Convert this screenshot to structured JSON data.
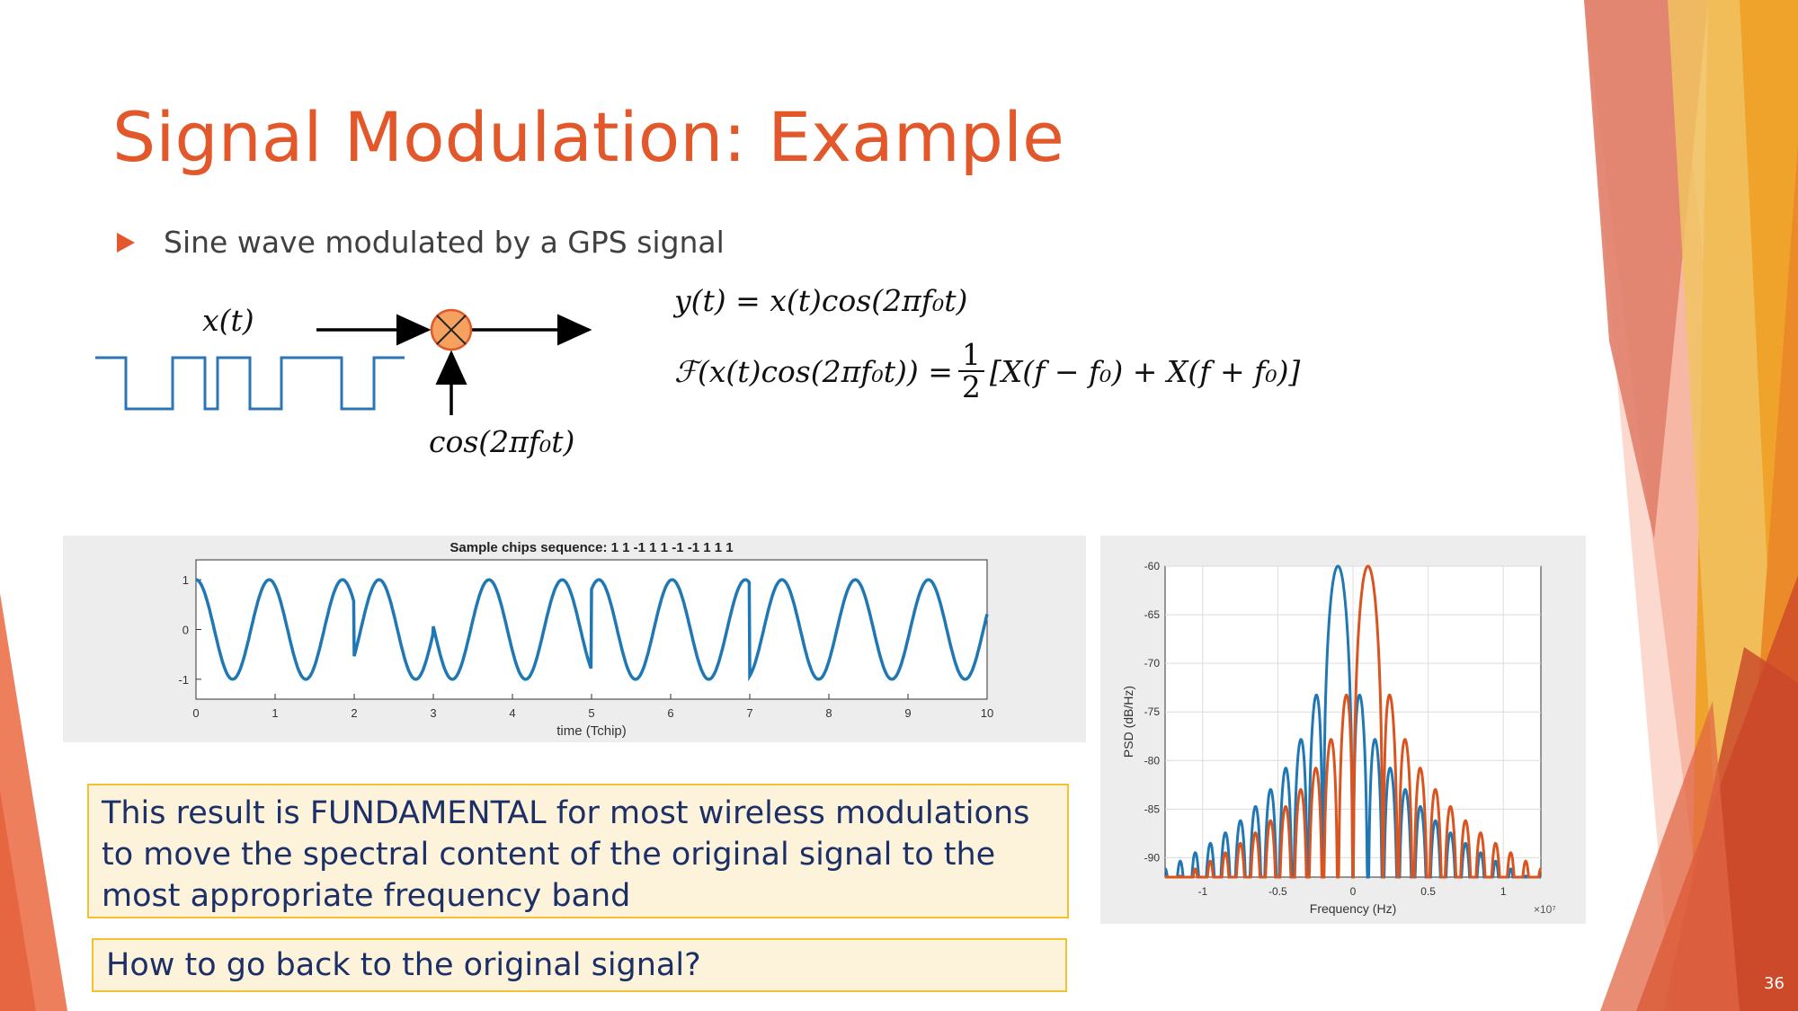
{
  "slide": {
    "title": "Signal Modulation: Example",
    "bullet": "Sine wave modulated by a GPS signal",
    "page_number": "36"
  },
  "block_diagram": {
    "input_label": "x(t)",
    "carrier_label": "cos(2πf₀t)",
    "mixer_icon": "multiply-circle-icon"
  },
  "equations": {
    "eq1": "y(t) = x(t)cos(2πf₀t)",
    "eq2_lhs": "ℱ(x(t)cos(2πf₀t)) =",
    "eq2_frac_num": "1",
    "eq2_frac_den": "2",
    "eq2_rhs": "[X(f − f₀) + X(f + f₀)]"
  },
  "callouts": {
    "fundamental": "This result is FUNDAMENTAL for most wireless modulations to move the spectral content of the original signal to the most appropriate frequency band",
    "question": "How to go back to the original signal?"
  },
  "colors": {
    "title": "#e2582a",
    "callout_bg": "#fdf3db",
    "callout_border": "#f2c233",
    "callout_text": "#1c2f66",
    "line_blue": "#1f77b4",
    "line_orange": "#d9541e"
  },
  "chart_data": [
    {
      "type": "line",
      "title": "Sample chips sequence: 1  1 -1  1  1 -1 -1  1  1  1",
      "chips": [
        1,
        1,
        -1,
        1,
        1,
        -1,
        -1,
        1,
        1,
        1
      ],
      "xlabel": "time (Tchip)",
      "ylabel": "",
      "xlim": [
        0,
        10
      ],
      "ylim": [
        -1.4,
        1.4
      ],
      "xticks": [
        "0",
        "1",
        "2",
        "3",
        "4",
        "5",
        "6",
        "7",
        "8",
        "9",
        "10"
      ],
      "yticks": [
        "1",
        "0",
        "-1"
      ],
      "grid": false,
      "series": [
        {
          "color": "#1f77b4"
        }
      ]
    },
    {
      "type": "line",
      "title": "",
      "xlabel": "Frequency (Hz)",
      "ylabel": "PSD (dB/Hz)",
      "x_exponent": "×10⁷",
      "xlim": [
        -1.25,
        1.25
      ],
      "ylim": [
        -92,
        -60
      ],
      "xticks": [
        "-1",
        "-0.5",
        "0",
        "0.5",
        "1"
      ],
      "yticks": [
        "-60",
        "-65",
        "-70",
        "-75",
        "-80",
        "-85",
        "-90"
      ],
      "grid": true,
      "series": [
        {
          "color": "#1f77b4",
          "center": -0.1,
          "peak_db": -60
        },
        {
          "color": "#d9541e",
          "center": 0.1,
          "peak_db": -60
        }
      ]
    }
  ]
}
